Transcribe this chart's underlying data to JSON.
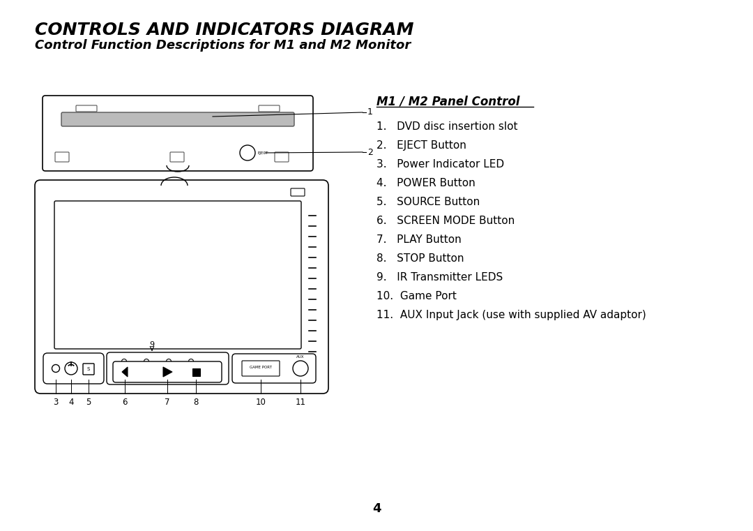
{
  "title": "CONTROLS AND INDICATORS DIAGRAM",
  "subtitle": "Control Function Descriptions for M1 and M2 Monitor",
  "panel_title": "M1 / M2 Panel Control",
  "items": [
    "1.   DVD disc insertion slot",
    "2.   EJECT Button",
    "3.   Power Indicator LED",
    "4.   POWER Button",
    "5.   SOURCE Button",
    "6.   SCREEN MODE Button",
    "7.   PLAY Button",
    "8.   STOP Button",
    "9.   IR Transmitter LEDS",
    "10.  Game Port",
    "11.  AUX Input Jack (use with supplied AV adaptor)"
  ],
  "page_number": "4",
  "bg_color": "#ffffff",
  "text_color": "#000000"
}
